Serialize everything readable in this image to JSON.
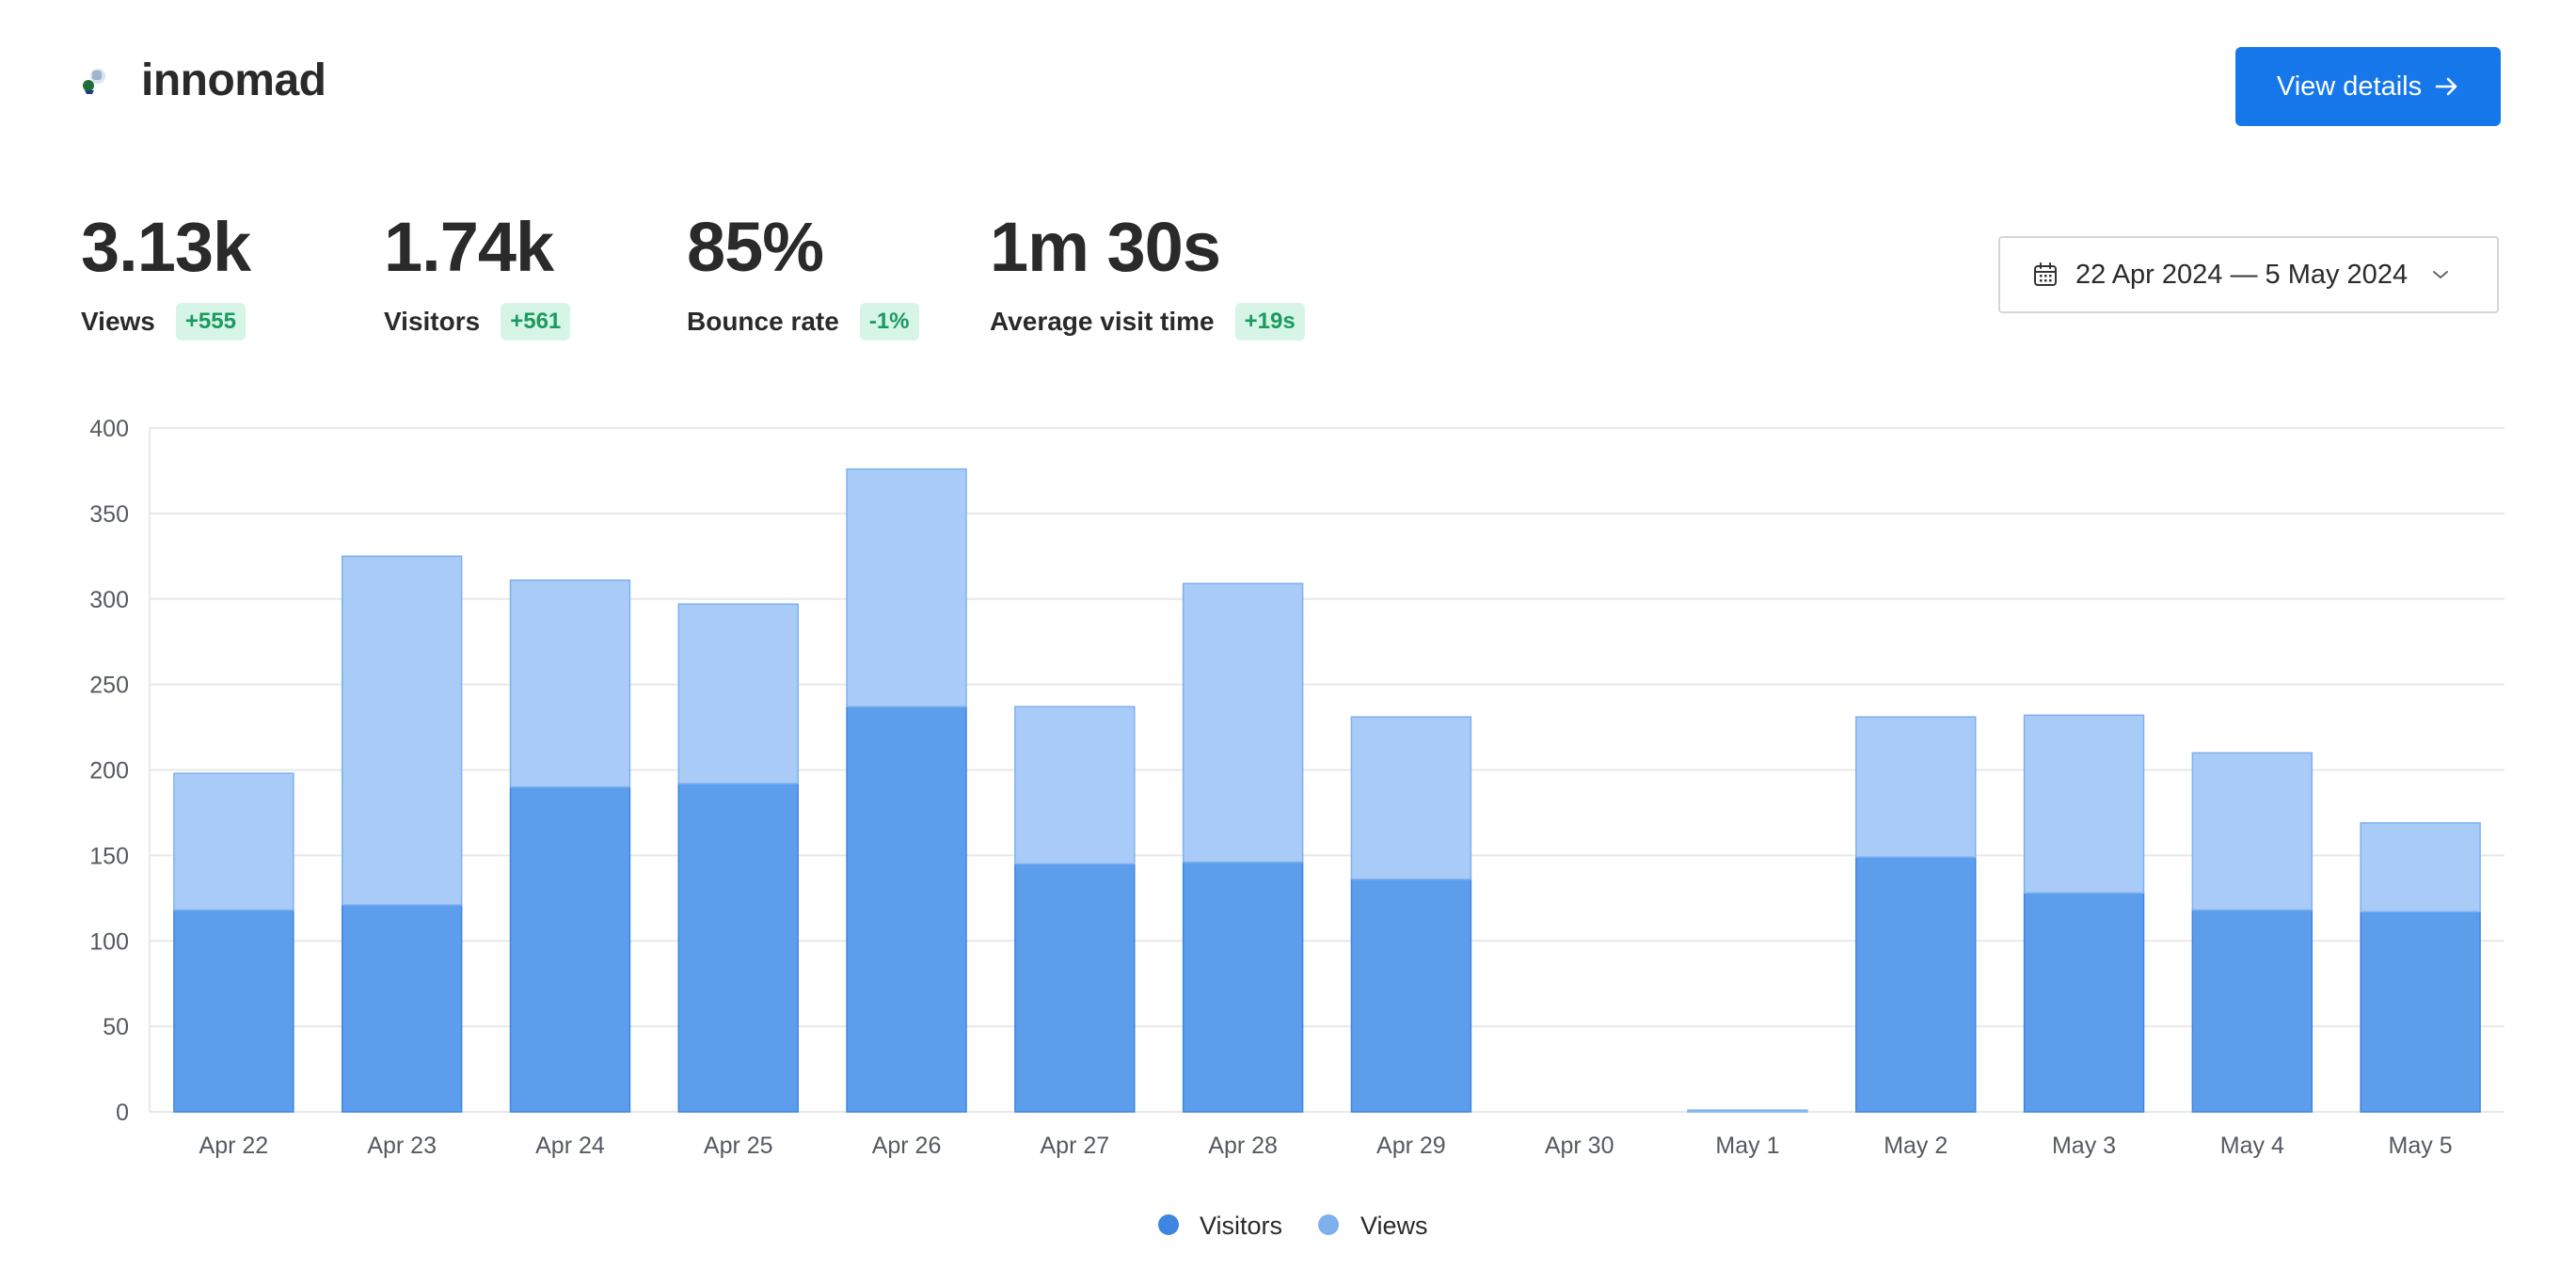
{
  "brand": {
    "name": "innomad"
  },
  "header": {
    "view_details_label": "View details"
  },
  "stats": [
    {
      "value": "3.13k",
      "label": "Views",
      "delta": "+555"
    },
    {
      "value": "1.74k",
      "label": "Visitors",
      "delta": "+561"
    },
    {
      "value": "85%",
      "label": "Bounce rate",
      "delta": "-1%"
    },
    {
      "value": "1m 30s",
      "label": "Average visit time",
      "delta": "+19s"
    }
  ],
  "date_range": {
    "label": "22 Apr 2024 — 5 May 2024"
  },
  "colors": {
    "accent": "#1677eb",
    "visitors": "#5c9eec",
    "views": "#a9cbf7",
    "badge_bg": "#d6f5e6",
    "badge_text": "#1a9b5e"
  },
  "icons": {
    "calendar": "calendar-icon",
    "chevron": "chevron-down-icon",
    "arrow": "arrow-right-icon"
  },
  "chart_data": {
    "type": "bar",
    "stacked": true,
    "categories": [
      "Apr 22",
      "Apr 23",
      "Apr 24",
      "Apr 25",
      "Apr 26",
      "Apr 27",
      "Apr 28",
      "Apr 29",
      "Apr 30",
      "May 1",
      "May 2",
      "May 3",
      "May 4",
      "May 5"
    ],
    "series": [
      {
        "name": "Visitors",
        "values": [
          118,
          121,
          190,
          192,
          237,
          145,
          146,
          136,
          0,
          0,
          149,
          128,
          118,
          117
        ]
      },
      {
        "name": "Views",
        "values": [
          80,
          204,
          121,
          105,
          139,
          92,
          163,
          95,
          0,
          1,
          82,
          104,
          92,
          52
        ]
      }
    ],
    "ylim": [
      0,
      400
    ],
    "yticks": [
      0,
      50,
      100,
      150,
      200,
      250,
      300,
      350,
      400
    ],
    "grid": true,
    "legend": "bottom-center",
    "xlabel": "",
    "ylabel": ""
  }
}
